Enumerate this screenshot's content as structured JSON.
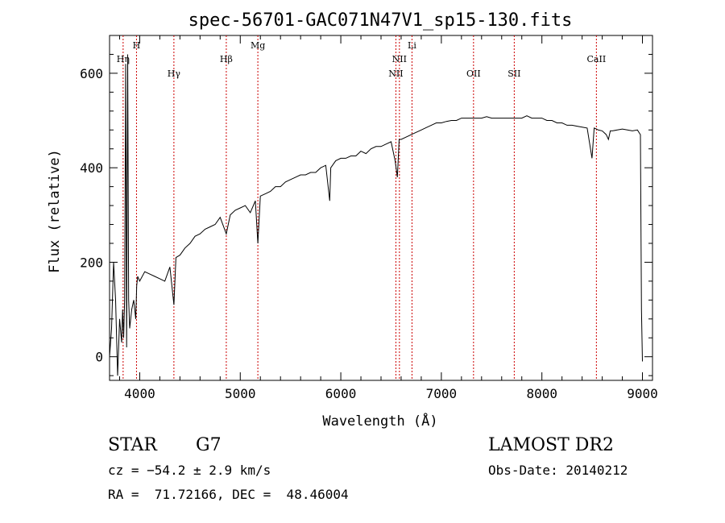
{
  "chart_data": {
    "type": "line",
    "title": "spec-56701-GAC071N47V1_sp15-130.fits",
    "xlabel": "Wavelength (Å)",
    "ylabel": "Flux (relative)",
    "xlim": [
      3700,
      9100
    ],
    "ylim": [
      -50,
      680
    ],
    "xticks": [
      4000,
      5000,
      6000,
      7000,
      8000,
      9000
    ],
    "yticks": [
      0,
      200,
      400,
      600
    ],
    "grid": false,
    "line_color": "#000000",
    "marker_color": "#cc0000",
    "series": [
      {
        "x": [
          3700,
          3720,
          3740,
          3760,
          3780,
          3800,
          3820,
          3830,
          3840,
          3850,
          3860,
          3870,
          3880,
          3890,
          3900,
          3920,
          3940,
          3960,
          3970,
          3980,
          4000,
          4050,
          4100,
          4150,
          4200,
          4250,
          4300,
          4340,
          4360,
          4400,
          4450,
          4500,
          4550,
          4600,
          4650,
          4700,
          4750,
          4800,
          4861,
          4900,
          4950,
          5000,
          5050,
          5100,
          5150,
          5175,
          5200,
          5250,
          5300,
          5350,
          5400,
          5450,
          5500,
          5550,
          5600,
          5650,
          5700,
          5750,
          5800,
          5850,
          5890,
          5900,
          5950,
          6000,
          6050,
          6100,
          6150,
          6200,
          6250,
          6300,
          6350,
          6400,
          6450,
          6500,
          6540,
          6563,
          6580,
          6600,
          6650,
          6700,
          6750,
          6800,
          6850,
          6900,
          6950,
          7000,
          7050,
          7100,
          7150,
          7200,
          7250,
          7300,
          7350,
          7400,
          7450,
          7500,
          7550,
          7600,
          7650,
          7700,
          7750,
          7800,
          7850,
          7900,
          7950,
          8000,
          8050,
          8100,
          8150,
          8200,
          8250,
          8300,
          8350,
          8400,
          8450,
          8498,
          8520,
          8542,
          8560,
          8600,
          8640,
          8662,
          8680,
          8700,
          8750,
          8800,
          8850,
          8900,
          8950,
          8980,
          8990,
          9000
        ],
        "y": [
          0,
          60,
          200,
          120,
          -40,
          80,
          30,
          100,
          40,
          120,
          620,
          20,
          640,
          120,
          60,
          100,
          120,
          80,
          150,
          170,
          160,
          180,
          175,
          170,
          165,
          160,
          190,
          110,
          210,
          215,
          230,
          240,
          255,
          260,
          270,
          275,
          280,
          295,
          260,
          300,
          310,
          315,
          320,
          305,
          330,
          240,
          340,
          345,
          350,
          360,
          360,
          370,
          375,
          380,
          385,
          385,
          390,
          390,
          400,
          405,
          330,
          400,
          415,
          420,
          420,
          425,
          425,
          435,
          430,
          440,
          445,
          445,
          450,
          455,
          415,
          380,
          460,
          460,
          465,
          470,
          475,
          480,
          485,
          490,
          495,
          495,
          498,
          500,
          500,
          505,
          505,
          505,
          505,
          505,
          508,
          505,
          505,
          505,
          505,
          505,
          505,
          505,
          510,
          505,
          505,
          505,
          500,
          500,
          495,
          495,
          490,
          490,
          488,
          486,
          484,
          420,
          484,
          482,
          480,
          478,
          470,
          460,
          478,
          478,
          480,
          482,
          480,
          478,
          480,
          470,
          100,
          -10
        ]
      }
    ],
    "lines": [
      {
        "label": "Hη",
        "x": 3835,
        "row": 1
      },
      {
        "label": "H",
        "x": 3968,
        "row": 0
      },
      {
        "label": "Hγ",
        "x": 4340,
        "row": 2
      },
      {
        "label": "Hβ",
        "x": 4861,
        "row": 1
      },
      {
        "label": "Mg",
        "x": 5175,
        "row": 0
      },
      {
        "label": "NII",
        "x": 6548,
        "row": 2
      },
      {
        "label": "NII",
        "x": 6583,
        "row": 1
      },
      {
        "label": "Li",
        "x": 6708,
        "row": 0
      },
      {
        "label": "OII",
        "x": 7320,
        "row": 2
      },
      {
        "label": "SII",
        "x": 7725,
        "row": 2
      },
      {
        "label": "CaII",
        "x": 8542,
        "row": 1
      }
    ]
  },
  "footer": {
    "object_class": "STAR",
    "subclass": "G7",
    "survey": "LAMOST DR2",
    "cz": "cz = −54.2 ± 2.9 km/s",
    "obs_date": "Obs-Date: 20140212",
    "coords": "RA =  71.72166, DEC =  48.46004"
  }
}
